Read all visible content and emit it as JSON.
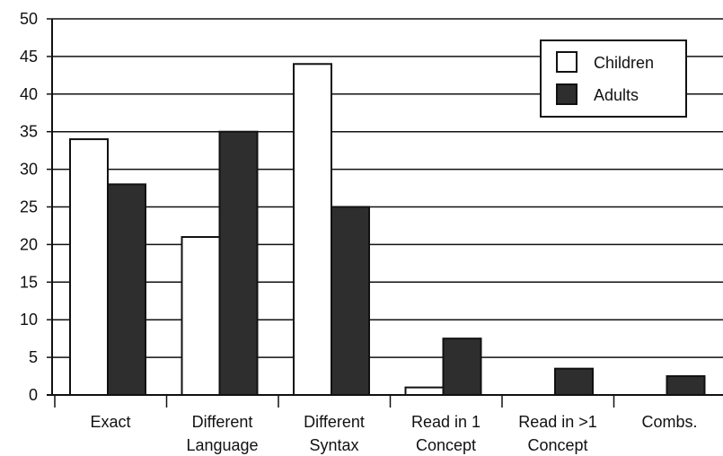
{
  "chart_data": {
    "type": "bar",
    "categories": [
      [
        "Exact"
      ],
      [
        "Different",
        "Language"
      ],
      [
        "Different",
        "Syntax"
      ],
      [
        "Read in 1",
        "Concept"
      ],
      [
        "Read in >1",
        "Concept"
      ],
      [
        "Combs."
      ]
    ],
    "series": [
      {
        "name": "Children",
        "values": [
          34,
          21,
          44,
          1,
          0,
          0
        ],
        "fill": "#ffffff"
      },
      {
        "name": "Adults",
        "values": [
          28,
          35,
          25,
          7.5,
          3.5,
          2.5
        ],
        "fill": "#2e2e2e"
      }
    ],
    "ylim": [
      0,
      50
    ],
    "yticks": [
      0,
      5,
      10,
      15,
      20,
      25,
      30,
      35,
      40,
      45,
      50
    ],
    "grid": true,
    "legend_position": "top-right",
    "title": "",
    "xlabel": "",
    "ylabel": ""
  },
  "colors": {
    "axis": "#111111",
    "grid": "#111111",
    "children_fill": "#ffffff",
    "adults_fill": "#2e2e2e"
  }
}
